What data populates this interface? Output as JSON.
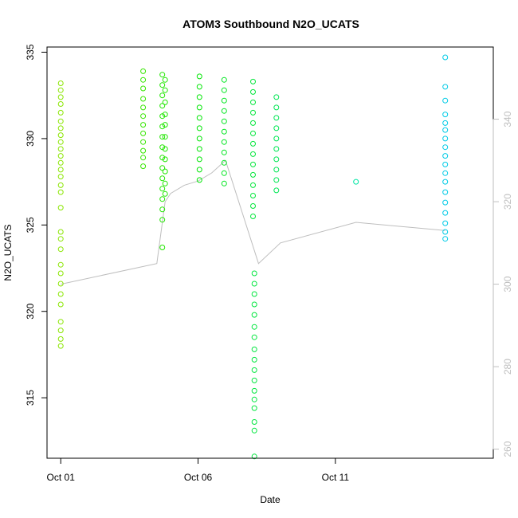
{
  "chart_data": {
    "type": "scatter",
    "title": "ATOM3 Southbound N2O_UCATS",
    "xlabel": "Date",
    "ylabel": "N2O_UCATS",
    "x_unit": "day of Oct 2017",
    "xlim": [
      0.5,
      16.75
    ],
    "ylim": [
      311.5,
      335.3
    ],
    "y2lim": [
      257.8,
      357.5
    ],
    "x_ticks": [
      {
        "value": 1,
        "label": "Oct 01"
      },
      {
        "value": 6,
        "label": "Oct 06"
      },
      {
        "value": 11,
        "label": "Oct 11"
      }
    ],
    "y_ticks": [
      315,
      320,
      325,
      330,
      335
    ],
    "y2_ticks": [
      260,
      280,
      300,
      320,
      340
    ],
    "grid": false,
    "legend": "none",
    "series": [
      {
        "values": [
          {
            "x": 1.0,
            "y": 333.2
          },
          {
            "x": 1.0,
            "y": 332.8
          },
          {
            "x": 1.0,
            "y": 332.4
          },
          {
            "x": 1.0,
            "y": 332.0
          },
          {
            "x": 1.0,
            "y": 331.5
          },
          {
            "x": 1.0,
            "y": 331.0
          },
          {
            "x": 1.0,
            "y": 330.6
          },
          {
            "x": 1.0,
            "y": 330.2
          },
          {
            "x": 1.0,
            "y": 329.8
          },
          {
            "x": 1.0,
            "y": 329.4
          },
          {
            "x": 1.0,
            "y": 329.0
          },
          {
            "x": 1.0,
            "y": 328.6
          },
          {
            "x": 1.0,
            "y": 328.2
          },
          {
            "x": 1.0,
            "y": 327.8
          },
          {
            "x": 1.0,
            "y": 327.3
          },
          {
            "x": 1.0,
            "y": 326.9
          },
          {
            "x": 1.0,
            "y": 326.0
          },
          {
            "x": 1.0,
            "y": 324.6
          },
          {
            "x": 1.0,
            "y": 324.2
          },
          {
            "x": 1.0,
            "y": 323.6
          },
          {
            "x": 1.0,
            "y": 322.7
          },
          {
            "x": 1.0,
            "y": 322.2
          },
          {
            "x": 1.0,
            "y": 321.6
          },
          {
            "x": 1.0,
            "y": 321.0
          },
          {
            "x": 1.0,
            "y": 320.4
          },
          {
            "x": 1.0,
            "y": 319.4
          },
          {
            "x": 1.0,
            "y": 318.9
          },
          {
            "x": 1.0,
            "y": 318.4
          },
          {
            "x": 1.0,
            "y": 318.0
          },
          {
            "x": 4.0,
            "y": 333.9
          },
          {
            "x": 4.0,
            "y": 333.4
          },
          {
            "x": 4.0,
            "y": 332.9
          },
          {
            "x": 4.0,
            "y": 332.3
          },
          {
            "x": 4.0,
            "y": 331.8
          },
          {
            "x": 4.0,
            "y": 331.3
          },
          {
            "x": 4.0,
            "y": 330.8
          },
          {
            "x": 4.0,
            "y": 330.3
          },
          {
            "x": 4.0,
            "y": 329.8
          },
          {
            "x": 4.0,
            "y": 329.3
          },
          {
            "x": 4.0,
            "y": 328.9
          },
          {
            "x": 4.0,
            "y": 328.4
          },
          {
            "x": 4.7,
            "y": 333.7
          },
          {
            "x": 4.7,
            "y": 333.1
          },
          {
            "x": 4.7,
            "y": 332.5
          },
          {
            "x": 4.7,
            "y": 331.9
          },
          {
            "x": 4.7,
            "y": 331.3
          },
          {
            "x": 4.7,
            "y": 330.7
          },
          {
            "x": 4.7,
            "y": 330.1
          },
          {
            "x": 4.7,
            "y": 329.5
          },
          {
            "x": 4.7,
            "y": 328.9
          },
          {
            "x": 4.7,
            "y": 328.3
          },
          {
            "x": 4.7,
            "y": 327.7
          },
          {
            "x": 4.7,
            "y": 327.1
          },
          {
            "x": 4.7,
            "y": 326.5
          },
          {
            "x": 4.7,
            "y": 325.9
          },
          {
            "x": 4.7,
            "y": 325.3
          },
          {
            "x": 4.7,
            "y": 323.7
          },
          {
            "x": 4.8,
            "y": 333.4
          },
          {
            "x": 4.8,
            "y": 332.8
          },
          {
            "x": 4.8,
            "y": 332.1
          },
          {
            "x": 4.8,
            "y": 331.4
          },
          {
            "x": 4.8,
            "y": 330.8
          },
          {
            "x": 4.8,
            "y": 330.1
          },
          {
            "x": 4.8,
            "y": 329.4
          },
          {
            "x": 4.8,
            "y": 328.8
          },
          {
            "x": 4.8,
            "y": 328.1
          },
          {
            "x": 4.8,
            "y": 327.4
          },
          {
            "x": 4.8,
            "y": 326.8
          },
          {
            "x": 6.05,
            "y": 333.6
          },
          {
            "x": 6.05,
            "y": 333.0
          },
          {
            "x": 6.05,
            "y": 332.4
          },
          {
            "x": 6.05,
            "y": 331.8
          },
          {
            "x": 6.05,
            "y": 331.2
          },
          {
            "x": 6.05,
            "y": 330.6
          },
          {
            "x": 6.05,
            "y": 330.0
          },
          {
            "x": 6.05,
            "y": 329.4
          },
          {
            "x": 6.05,
            "y": 328.8
          },
          {
            "x": 6.05,
            "y": 328.2
          },
          {
            "x": 6.05,
            "y": 327.6
          },
          {
            "x": 6.95,
            "y": 333.4
          },
          {
            "x": 6.95,
            "y": 332.8
          },
          {
            "x": 6.95,
            "y": 332.2
          },
          {
            "x": 6.95,
            "y": 331.6
          },
          {
            "x": 6.95,
            "y": 331.0
          },
          {
            "x": 6.95,
            "y": 330.4
          },
          {
            "x": 6.95,
            "y": 329.8
          },
          {
            "x": 6.95,
            "y": 329.2
          },
          {
            "x": 6.95,
            "y": 328.6
          },
          {
            "x": 6.95,
            "y": 328.0
          },
          {
            "x": 6.95,
            "y": 327.4
          },
          {
            "x": 8.0,
            "y": 333.3
          },
          {
            "x": 8.0,
            "y": 332.7
          },
          {
            "x": 8.0,
            "y": 332.1
          },
          {
            "x": 8.0,
            "y": 331.5
          },
          {
            "x": 8.0,
            "y": 330.9
          },
          {
            "x": 8.0,
            "y": 330.3
          },
          {
            "x": 8.0,
            "y": 329.7
          },
          {
            "x": 8.0,
            "y": 329.1
          },
          {
            "x": 8.0,
            "y": 328.5
          },
          {
            "x": 8.0,
            "y": 327.9
          },
          {
            "x": 8.0,
            "y": 327.3
          },
          {
            "x": 8.0,
            "y": 326.7
          },
          {
            "x": 8.0,
            "y": 326.1
          },
          {
            "x": 8.0,
            "y": 325.5
          },
          {
            "x": 8.05,
            "y": 322.2
          },
          {
            "x": 8.05,
            "y": 321.6
          },
          {
            "x": 8.05,
            "y": 321.0
          },
          {
            "x": 8.05,
            "y": 320.4
          },
          {
            "x": 8.05,
            "y": 319.8
          },
          {
            "x": 8.05,
            "y": 319.1
          },
          {
            "x": 8.05,
            "y": 318.5
          },
          {
            "x": 8.05,
            "y": 317.8
          },
          {
            "x": 8.05,
            "y": 317.2
          },
          {
            "x": 8.05,
            "y": 316.6
          },
          {
            "x": 8.05,
            "y": 316.0
          },
          {
            "x": 8.05,
            "y": 315.4
          },
          {
            "x": 8.05,
            "y": 314.9
          },
          {
            "x": 8.05,
            "y": 314.4
          },
          {
            "x": 8.05,
            "y": 313.6
          },
          {
            "x": 8.05,
            "y": 313.1
          },
          {
            "x": 8.05,
            "y": 311.6
          },
          {
            "x": 8.85,
            "y": 332.4
          },
          {
            "x": 8.85,
            "y": 331.8
          },
          {
            "x": 8.85,
            "y": 331.2
          },
          {
            "x": 8.85,
            "y": 330.6
          },
          {
            "x": 8.85,
            "y": 330.0
          },
          {
            "x": 8.85,
            "y": 329.4
          },
          {
            "x": 8.85,
            "y": 328.8
          },
          {
            "x": 8.85,
            "y": 328.2
          },
          {
            "x": 8.85,
            "y": 327.6
          },
          {
            "x": 8.85,
            "y": 327.0
          },
          {
            "x": 11.75,
            "y": 327.5
          },
          {
            "x": 15.0,
            "y": 334.7
          },
          {
            "x": 15.0,
            "y": 333.0
          },
          {
            "x": 15.0,
            "y": 332.2
          },
          {
            "x": 15.0,
            "y": 331.4
          },
          {
            "x": 15.0,
            "y": 330.9
          },
          {
            "x": 15.0,
            "y": 330.5
          },
          {
            "x": 15.0,
            "y": 330.0
          },
          {
            "x": 15.0,
            "y": 329.5
          },
          {
            "x": 15.0,
            "y": 329.0
          },
          {
            "x": 15.0,
            "y": 328.5
          },
          {
            "x": 15.0,
            "y": 328.0
          },
          {
            "x": 15.0,
            "y": 327.5
          },
          {
            "x": 15.0,
            "y": 326.9
          },
          {
            "x": 15.0,
            "y": 326.3
          },
          {
            "x": 15.0,
            "y": 325.7
          },
          {
            "x": 15.0,
            "y": 325.1
          },
          {
            "x": 15.0,
            "y": 324.6
          },
          {
            "x": 15.0,
            "y": 324.2
          }
        ]
      }
    ],
    "secondary_series": [
      {
        "values": [
          {
            "x": 1.0,
            "y": 300
          },
          {
            "x": 4.5,
            "y": 305
          },
          {
            "x": 4.8,
            "y": 320
          },
          {
            "x": 5.0,
            "y": 322
          },
          {
            "x": 5.5,
            "y": 324
          },
          {
            "x": 6.0,
            "y": 325
          },
          {
            "x": 6.5,
            "y": 327
          },
          {
            "x": 7.0,
            "y": 330
          },
          {
            "x": 8.2,
            "y": 305
          },
          {
            "x": 9.0,
            "y": 310
          },
          {
            "x": 11.75,
            "y": 315
          },
          {
            "x": 15.0,
            "y": 313
          }
        ]
      }
    ]
  }
}
